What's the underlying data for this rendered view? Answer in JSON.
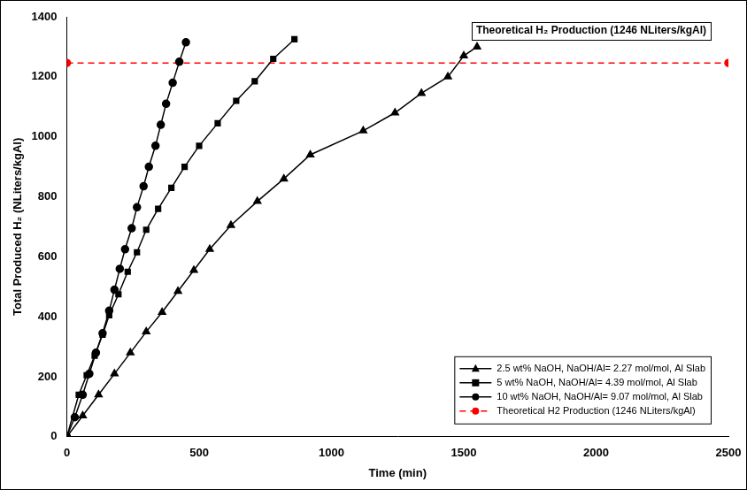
{
  "chart_data": {
    "type": "line",
    "x_label": "Time (min)",
    "y_label": "Total Produced H₂ (NLiters/kgAl)",
    "annotations": [
      "Theoretical H₂ Production (1246 NLiters/kgAl)"
    ],
    "xlim": [
      0,
      2500
    ],
    "xticks": [
      0,
      500,
      1000,
      1500,
      2000,
      2500
    ],
    "ylim": [
      0,
      1400
    ],
    "yticks": [
      0,
      200,
      400,
      600,
      800,
      1000,
      1200,
      1400
    ],
    "grid": false,
    "legend": "lower right",
    "series": [
      {
        "name": "2.5 wt% NaOH, NaOH/Al= 2.27 mol/mol, Al Slab",
        "color": "#000000",
        "marker": "triangle",
        "line_style": "solid",
        "x": [
          0,
          60,
          120,
          180,
          240,
          300,
          360,
          420,
          480,
          540,
          620,
          720,
          820,
          920,
          1120,
          1240,
          1340,
          1440,
          1500,
          1550
        ],
        "values": [
          0,
          70,
          140,
          210,
          280,
          350,
          415,
          485,
          555,
          625,
          705,
          785,
          860,
          940,
          1020,
          1080,
          1145,
          1200,
          1270,
          1300
        ]
      },
      {
        "name": "5 wt% NaOH, NaOH/Al= 4.39 mol/mol, Al Slab",
        "color": "#000000",
        "marker": "square",
        "line_style": "solid",
        "x": [
          0,
          45,
          75,
          105,
          135,
          160,
          195,
          230,
          265,
          300,
          345,
          395,
          445,
          500,
          570,
          640,
          710,
          780,
          860
        ],
        "values": [
          0,
          140,
          205,
          270,
          340,
          405,
          475,
          550,
          615,
          690,
          760,
          830,
          900,
          970,
          1045,
          1120,
          1185,
          1260,
          1325
        ]
      },
      {
        "name": "10 wt% NaOH, NaOH/Al= 9.07 mol/mol, Al Slab",
        "color": "#000000",
        "marker": "circle",
        "line_style": "solid",
        "x": [
          0,
          30,
          60,
          85,
          110,
          135,
          160,
          180,
          200,
          220,
          245,
          265,
          290,
          310,
          335,
          355,
          375,
          400,
          425,
          450
        ],
        "values": [
          0,
          65,
          140,
          210,
          280,
          345,
          420,
          490,
          560,
          625,
          695,
          765,
          835,
          900,
          970,
          1040,
          1110,
          1180,
          1250,
          1315
        ]
      },
      {
        "name": "Theoretical H2 Production (1246 NLiters/kgAl)",
        "color": "#ff0000",
        "marker": "circle",
        "line_style": "dashed",
        "x": [
          0,
          2500
        ],
        "values": [
          1246,
          1246
        ]
      }
    ]
  }
}
